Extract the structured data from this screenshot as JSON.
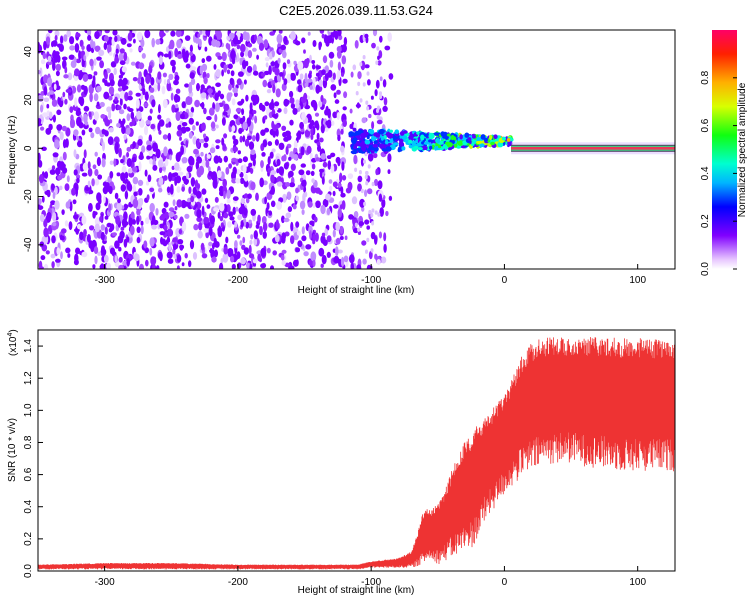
{
  "chart_data": [
    {
      "type": "heatmap",
      "title": "C2E5.2026.039.11.53.G24",
      "xlabel": "Height of straight line (km)",
      "ylabel": "Frequency (Hz)",
      "xlim": [
        -350,
        128
      ],
      "ylim": [
        -50,
        49
      ],
      "xticks": [
        -300,
        -200,
        -100,
        0,
        100
      ],
      "xtick_labels": [
        "-300",
        "-200",
        "-100",
        "0",
        "100"
      ],
      "yticks": [
        -40,
        -20,
        0,
        20,
        40
      ],
      "ytick_labels": [
        "-40",
        "-20",
        "0",
        "20",
        "40"
      ],
      "colorbar": {
        "label": "Normalized spectral amplitude",
        "range": [
          0,
          1
        ],
        "ticks": [
          0.0,
          0.2,
          0.4,
          0.6,
          0.8
        ],
        "tick_labels": [
          "0.0",
          "0.2",
          "0.4",
          "0.6",
          "0.8"
        ]
      },
      "regions": [
        {
          "name": "noise",
          "x_range": [
            -350,
            -110
          ],
          "freq_range": [
            -50,
            49
          ],
          "amplitude": 0.1
        },
        {
          "name": "transition",
          "x_range": [
            -115,
            5
          ],
          "freq_center": 3,
          "amplitude": 0.4
        },
        {
          "name": "carrier",
          "x_range": [
            5,
            128
          ],
          "freq_center": 0,
          "amplitude": 0.9
        }
      ],
      "colors": {
        "noise": "#7f00ff",
        "carrier": "#ff0000"
      }
    },
    {
      "type": "line",
      "xlabel": "Height of straight line (km)",
      "ylabel": "SNR (10 * v/v)",
      "scale_label": "(x10",
      "scale_exponent": "4",
      "scale_suffix": ")",
      "xlim": [
        -350,
        128
      ],
      "ylim": [
        0,
        1.5
      ],
      "xticks": [
        -300,
        -200,
        -100,
        0,
        100
      ],
      "xtick_labels": [
        "-300",
        "-200",
        "-100",
        "0",
        "100"
      ],
      "yticks": [
        0.0,
        0.2,
        0.4,
        0.6,
        0.8,
        1.0,
        1.2,
        1.4
      ],
      "ytick_labels": [
        "0.0",
        "0.2",
        "0.4",
        "0.6",
        "0.8",
        "1.0",
        "1.2",
        "1.4"
      ],
      "series": [
        {
          "name": "SNR",
          "color": "#ee3333",
          "x": [
            -350,
            -300,
            -250,
            -200,
            -150,
            -110,
            -100,
            -90,
            -80,
            -70,
            -65,
            -60,
            -55,
            -50,
            -45,
            -40,
            -35,
            -30,
            -25,
            -20,
            -15,
            -10,
            -5,
            0,
            5,
            10,
            15,
            20,
            25,
            30,
            40,
            50,
            60,
            70,
            80,
            90,
            100,
            110,
            120,
            128
          ],
          "upper": [
            0.04,
            0.05,
            0.05,
            0.04,
            0.04,
            0.04,
            0.06,
            0.07,
            0.08,
            0.12,
            0.24,
            0.4,
            0.38,
            0.42,
            0.5,
            0.62,
            0.72,
            0.8,
            0.85,
            0.92,
            0.96,
            1.0,
            1.06,
            1.1,
            1.18,
            1.3,
            1.36,
            1.42,
            1.44,
            1.45,
            1.46,
            1.46,
            1.46,
            1.46,
            1.46,
            1.45,
            1.45,
            1.45,
            1.44,
            1.44
          ],
          "lower": [
            0.01,
            0.01,
            0.01,
            0.01,
            0.01,
            0.01,
            0.02,
            0.02,
            0.02,
            0.02,
            0.03,
            0.05,
            0.08,
            0.04,
            0.06,
            0.08,
            0.1,
            0.12,
            0.14,
            0.2,
            0.3,
            0.36,
            0.42,
            0.48,
            0.52,
            0.56,
            0.6,
            0.62,
            0.64,
            0.66,
            0.67,
            0.67,
            0.65,
            0.64,
            0.63,
            0.62,
            0.62,
            0.62,
            0.62,
            0.62
          ]
        }
      ]
    }
  ]
}
